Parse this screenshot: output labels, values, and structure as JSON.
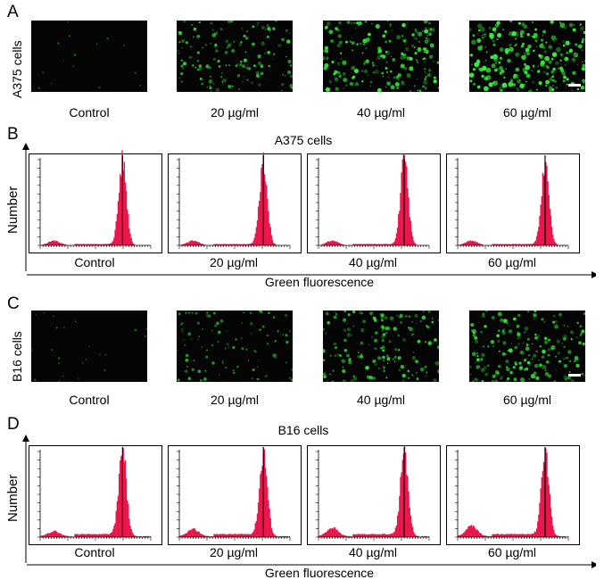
{
  "panels": {
    "A": {
      "letter": "A",
      "row_label": "A375 cells",
      "captions": [
        "Control",
        "20 µg/ml",
        "40 µg/ml",
        "60 µg/ml"
      ],
      "densities": [
        0.02,
        0.55,
        0.75,
        0.9
      ]
    },
    "B": {
      "letter": "B",
      "title": "A375 cells",
      "ylabel": "Number",
      "xlabel": "Green fluorescence",
      "captions": [
        "Control",
        "20 µg/ml",
        "40 µg/ml",
        "60 µg/ml"
      ]
    },
    "C": {
      "letter": "C",
      "row_label": "B16 cells",
      "captions": [
        "Control",
        "20 µg/ml",
        "40 µg/ml",
        "60 µg/ml"
      ],
      "densities": [
        0.05,
        0.35,
        0.6,
        0.7
      ]
    },
    "D": {
      "letter": "D",
      "title": "B16 cells",
      "ylabel": "Number",
      "xlabel": "Green fluorescence",
      "captions": [
        "Control",
        "20 µg/ml",
        "40 µg/ml",
        "60 µg/ml"
      ]
    }
  },
  "colors": {
    "histogram_fill": "#e8174a",
    "fluorescence": "#38e83a",
    "background_micro": "#050505"
  }
}
